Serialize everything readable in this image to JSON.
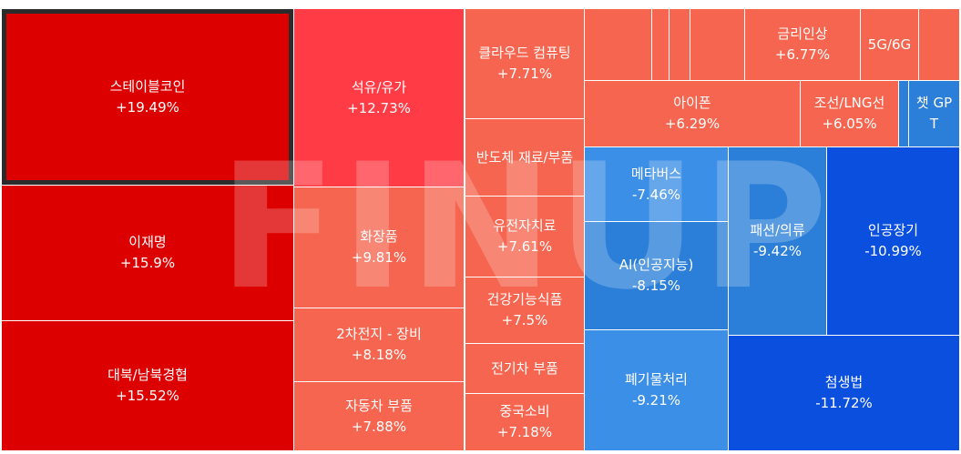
{
  "watermark": "FINUP",
  "colors": {
    "strong_up": "#dd0000",
    "up_red": "#ff3b45",
    "up": "#f5654f",
    "down_light": "#3c8fe6",
    "down": "#2b7fd8",
    "strong_down": "#0a4fde"
  },
  "chart_data": {
    "type": "treemap",
    "unit": "%",
    "items": [
      {
        "name": "스테이블코인",
        "change": "+19.49%",
        "value": 19.49,
        "selected": true
      },
      {
        "name": "이재명",
        "change": "+15.9%",
        "value": 15.9
      },
      {
        "name": "대북/남북경협",
        "change": "+15.52%",
        "value": 15.52
      },
      {
        "name": "석유/유가",
        "change": "+12.73%",
        "value": 12.73
      },
      {
        "name": "화장품",
        "change": "+9.81%",
        "value": 9.81
      },
      {
        "name": "2차전지 - 장비",
        "change": "+8.18%",
        "value": 8.18
      },
      {
        "name": "자동차 부품",
        "change": "+7.88%",
        "value": 7.88
      },
      {
        "name": "클라우드 컴퓨팅",
        "change": "+7.71%",
        "value": 7.71
      },
      {
        "name": "반도체 재료/부품",
        "change": "",
        "value": null
      },
      {
        "name": "유전자치료",
        "change": "+7.61%",
        "value": 7.61
      },
      {
        "name": "건강기능식품",
        "change": "+7.5%",
        "value": 7.5
      },
      {
        "name": "전기차 부품",
        "change": "",
        "value": null
      },
      {
        "name": "중국소비",
        "change": "+7.18%",
        "value": 7.18
      },
      {
        "name": "",
        "change": "",
        "value": null
      },
      {
        "name": "",
        "change": "",
        "value": null
      },
      {
        "name": "",
        "change": "",
        "value": null
      },
      {
        "name": "",
        "change": "",
        "value": null
      },
      {
        "name": "금리인상",
        "change": "+6.77%",
        "value": 6.77
      },
      {
        "name": "5G/6G",
        "change": "",
        "value": null
      },
      {
        "name": "",
        "change": "",
        "value": null
      },
      {
        "name": "아이폰",
        "change": "+6.29%",
        "value": 6.29
      },
      {
        "name": "조선/LNG선",
        "change": "+6.05%",
        "value": 6.05
      },
      {
        "name": "",
        "change": "",
        "value": null
      },
      {
        "name": "챗 GPT",
        "change": "",
        "value": null
      },
      {
        "name": "메타버스",
        "change": "-7.46%",
        "value": -7.46
      },
      {
        "name": "AI(인공지능)",
        "change": "-8.15%",
        "value": -8.15
      },
      {
        "name": "폐기물처리",
        "change": "-9.21%",
        "value": -9.21
      },
      {
        "name": "패션/의류",
        "change": "-9.42%",
        "value": -9.42
      },
      {
        "name": "인공장기",
        "change": "-10.99%",
        "value": -10.99
      },
      {
        "name": "첨생법",
        "change": "-11.72%",
        "value": -11.72
      }
    ]
  }
}
